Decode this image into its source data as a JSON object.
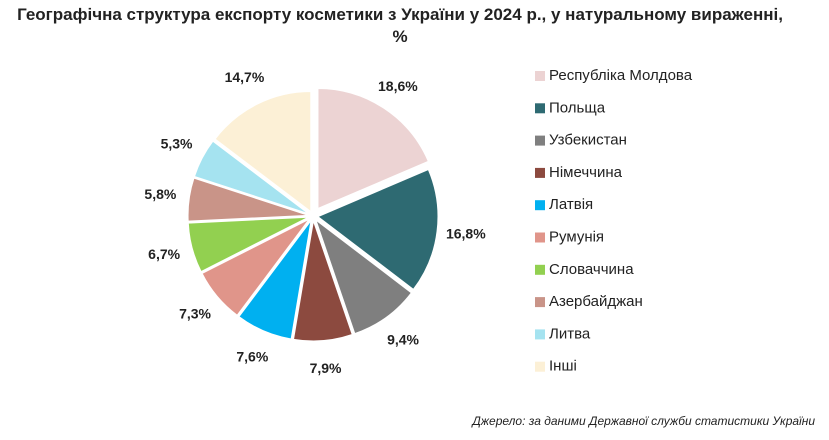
{
  "chart_data": {
    "type": "pie",
    "title": "Географічна структура експорту косметики з України у 2024 р., у натуральному вираженні, %",
    "source": "Джерело: за даними Державної служби статистики України",
    "categories": [
      "Республіка Молдова",
      "Польща",
      "Узбекистан",
      "Німеччина",
      "Латвія",
      "Румунія",
      "Словаччина",
      "Азербайджан",
      "Литва",
      "Інші"
    ],
    "values": [
      18.6,
      16.8,
      9.4,
      7.9,
      7.6,
      7.3,
      6.7,
      5.8,
      5.3,
      14.7
    ],
    "value_labels": [
      "18,6%",
      "16,8%",
      "9,4%",
      "7,9%",
      "7,6%",
      "7,3%",
      "6,7%",
      "5,8%",
      "5,3%",
      "14,7%"
    ],
    "colors": [
      "#ecd3d3",
      "#2e6a72",
      "#7f7f7f",
      "#8c4a3f",
      "#00b0f0",
      "#e0958a",
      "#92d050",
      "#c99488",
      "#a5e3f0",
      "#fcf0d6"
    ]
  }
}
